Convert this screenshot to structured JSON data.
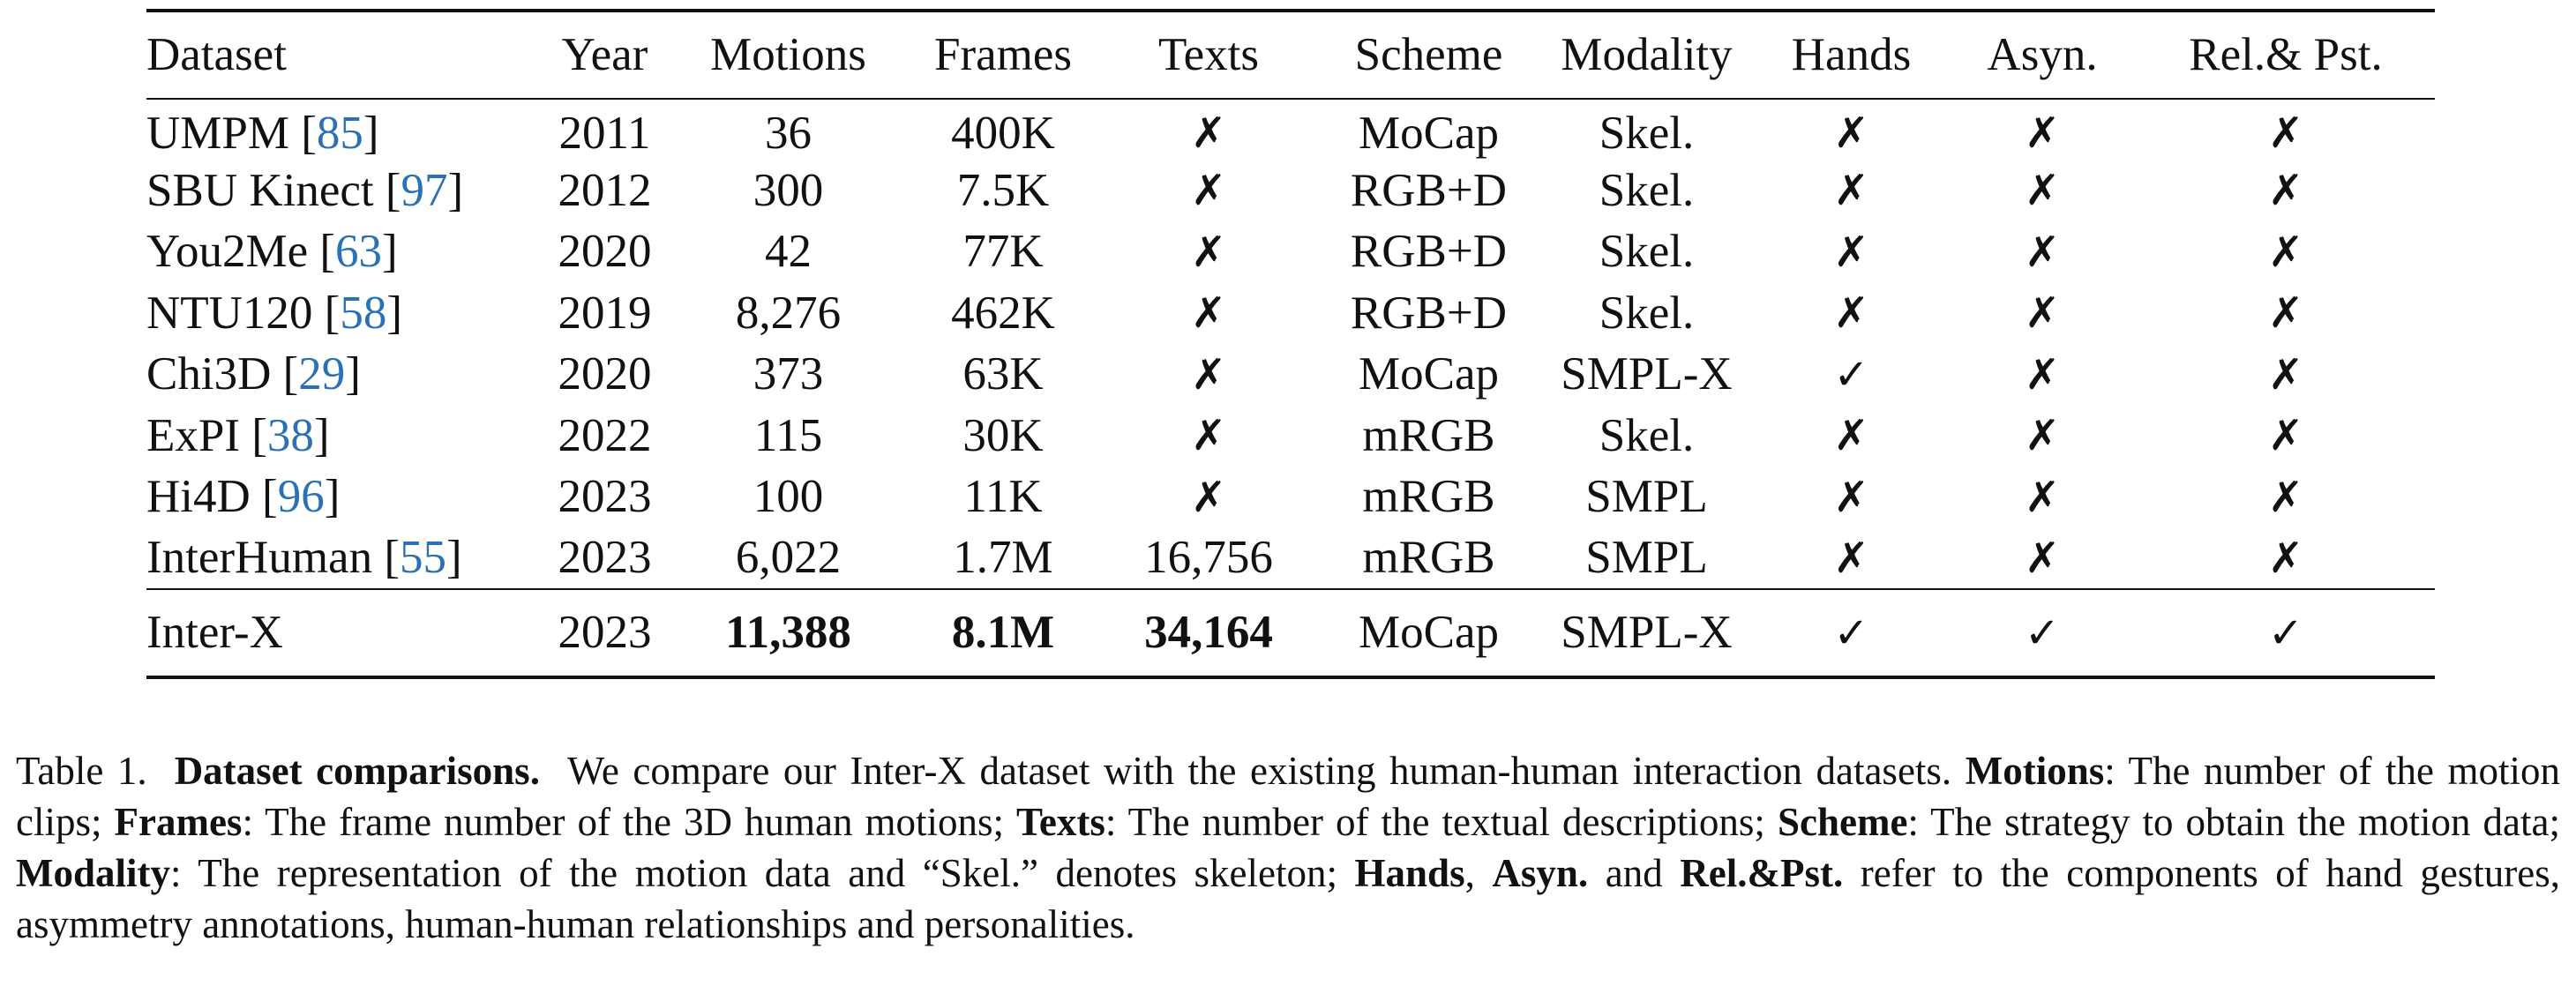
{
  "table": {
    "headers": [
      "Dataset",
      "Year",
      "Motions",
      "Frames",
      "Texts",
      "Scheme",
      "Modality",
      "Hands",
      "Asyn.",
      "Rel.& Pst."
    ],
    "rows": [
      {
        "name": "UMPM [",
        "ref": "85",
        "close": "]",
        "year": "2011",
        "motions": "36",
        "frames": "400K",
        "texts": "✗",
        "scheme": "MoCap",
        "modality": "Skel.",
        "hands": "✗",
        "asyn": "✗",
        "rel": "✗"
      },
      {
        "name": "SBU Kinect [",
        "ref": "97",
        "close": "]",
        "year": "2012",
        "motions": "300",
        "frames": "7.5K",
        "texts": "✗",
        "scheme": "RGB+D",
        "modality": "Skel.",
        "hands": "✗",
        "asyn": "✗",
        "rel": "✗"
      },
      {
        "name": "You2Me [",
        "ref": "63",
        "close": "]",
        "year": "2020",
        "motions": "42",
        "frames": "77K",
        "texts": "✗",
        "scheme": "RGB+D",
        "modality": "Skel.",
        "hands": "✗",
        "asyn": "✗",
        "rel": "✗"
      },
      {
        "name": "NTU120 [",
        "ref": "58",
        "close": "]",
        "year": "2019",
        "motions": "8,276",
        "frames": "462K",
        "texts": "✗",
        "scheme": "RGB+D",
        "modality": "Skel.",
        "hands": "✗",
        "asyn": "✗",
        "rel": "✗"
      },
      {
        "name": "Chi3D [",
        "ref": "29",
        "close": "]",
        "year": "2020",
        "motions": "373",
        "frames": "63K",
        "texts": "✗",
        "scheme": "MoCap",
        "modality": "SMPL-X",
        "hands": "✓",
        "asyn": "✗",
        "rel": "✗"
      },
      {
        "name": "ExPI [",
        "ref": "38",
        "close": "]",
        "year": "2022",
        "motions": "115",
        "frames": "30K",
        "texts": "✗",
        "scheme": "mRGB",
        "modality": "Skel.",
        "hands": "✗",
        "asyn": "✗",
        "rel": "✗"
      },
      {
        "name": "Hi4D [",
        "ref": "96",
        "close": "]",
        "year": "2023",
        "motions": "100",
        "frames": "11K",
        "texts": "✗",
        "scheme": "mRGB",
        "modality": "SMPL",
        "hands": "✗",
        "asyn": "✗",
        "rel": "✗"
      },
      {
        "name": "InterHuman [",
        "ref": "55",
        "close": "]",
        "year": "2023",
        "motions": "6,022",
        "frames": "1.7M",
        "texts": "16,756",
        "scheme": "mRGB",
        "modality": "SMPL",
        "hands": "✗",
        "asyn": "✗",
        "rel": "✗"
      }
    ],
    "final_row": {
      "name": "Inter-X",
      "year": "2023",
      "motions": "11,388",
      "frames": "8.1M",
      "texts": "34,164",
      "scheme": "MoCap",
      "modality": "SMPL-X",
      "hands": "✓",
      "asyn": "✓",
      "rel": "✓"
    }
  },
  "caption": {
    "label": "Table 1.",
    "title": "Dataset comparisons.",
    "intro": "We compare our Inter-X dataset with the existing human-human interaction datasets.",
    "k_motions": "Motions",
    "d_motions": ": The number of the motion clips;",
    "k_frames": "Frames",
    "d_frames": ": The frame number of the 3D human motions;",
    "k_texts": "Texts",
    "d_texts": ": The number of the textual descriptions;",
    "k_scheme": "Scheme",
    "d_scheme": ": The strategy to obtain the motion data;",
    "k_modality": "Modality",
    "d_modality": ": The representation of the motion data and “Skel.” denotes skeleton;",
    "k_hands": "Hands",
    "sep_comma": ",",
    "k_asyn": "Asyn.",
    "and_word": "and",
    "k_relpst": "Rel.&Pst.",
    "d_final": "refer to the components of hand gestures, asymmetry annotations, human-human relationships and personalities."
  }
}
